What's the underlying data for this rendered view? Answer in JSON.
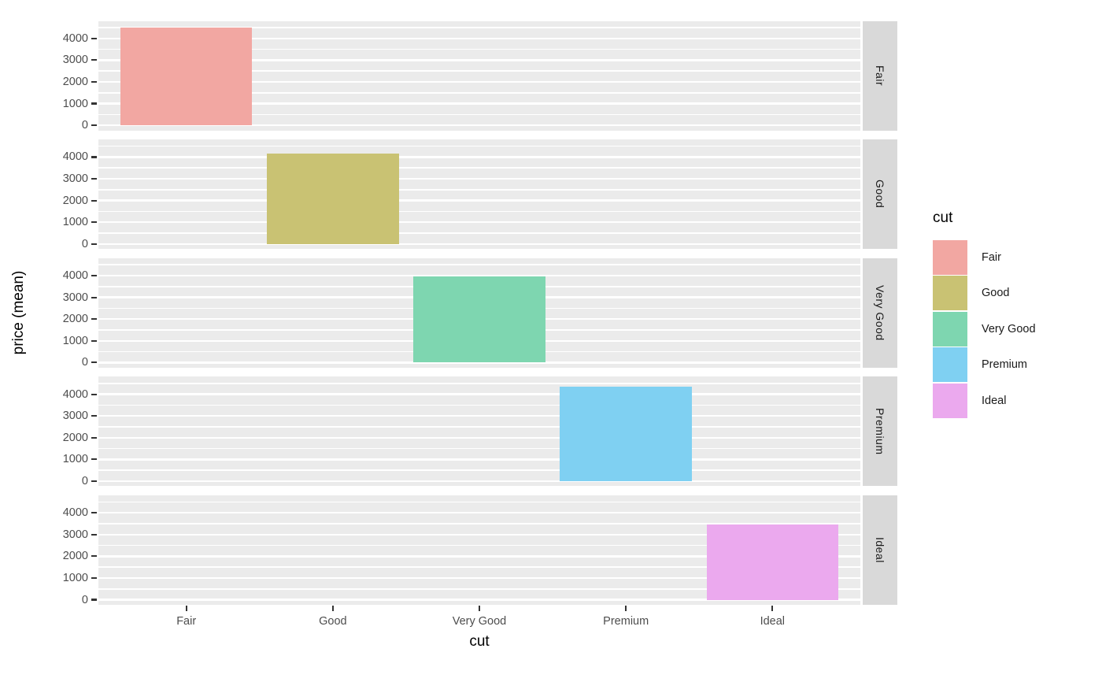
{
  "chart_data": {
    "type": "bar",
    "title": "",
    "xlabel": "cut",
    "ylabel": "price (mean)",
    "categories": [
      "Fair",
      "Good",
      "Very Good",
      "Premium",
      "Ideal"
    ],
    "y_ticks": [
      0,
      1000,
      2000,
      3000,
      4000
    ],
    "y_minor_ticks": [
      500,
      1500,
      2500,
      3500,
      4500
    ],
    "ylim": [
      -230,
      4815
    ],
    "grid": "white major and minor horizontal gridlines on gray panel",
    "facet": {
      "variable": "cut",
      "strip_position": "right",
      "labels": [
        "Fair",
        "Good",
        "Very Good",
        "Premium",
        "Ideal"
      ]
    },
    "series": [
      {
        "facet": "Fair",
        "category": "Fair",
        "value": 4490,
        "color": "#F2A7A2"
      },
      {
        "facet": "Good",
        "category": "Good",
        "value": 4150,
        "color": "#C9C273"
      },
      {
        "facet": "Very Good",
        "category": "Very Good",
        "value": 3950,
        "color": "#7ED6B0"
      },
      {
        "facet": "Premium",
        "category": "Premium",
        "value": 4360,
        "color": "#7FD0F2"
      },
      {
        "facet": "Ideal",
        "category": "Ideal",
        "value": 3470,
        "color": "#EBA9EE"
      }
    ],
    "legend": {
      "title": "cut",
      "position": "right",
      "entries": [
        {
          "label": "Fair",
          "color": "#F2A7A2"
        },
        {
          "label": "Good",
          "color": "#C9C273"
        },
        {
          "label": "Very Good",
          "color": "#7ED6B0"
        },
        {
          "label": "Premium",
          "color": "#7FD0F2"
        },
        {
          "label": "Ideal",
          "color": "#EBA9EE"
        }
      ]
    }
  },
  "style": {
    "panel_bg": "#EBEBEB",
    "strip_bg": "#D9D9D9",
    "grid_color": "#FFFFFF",
    "tick_label_color": "#4D4D4D",
    "strip_text_color": "#1A1A1A",
    "axis_title_color": "#000000",
    "tick_mark_color": "#333333"
  }
}
